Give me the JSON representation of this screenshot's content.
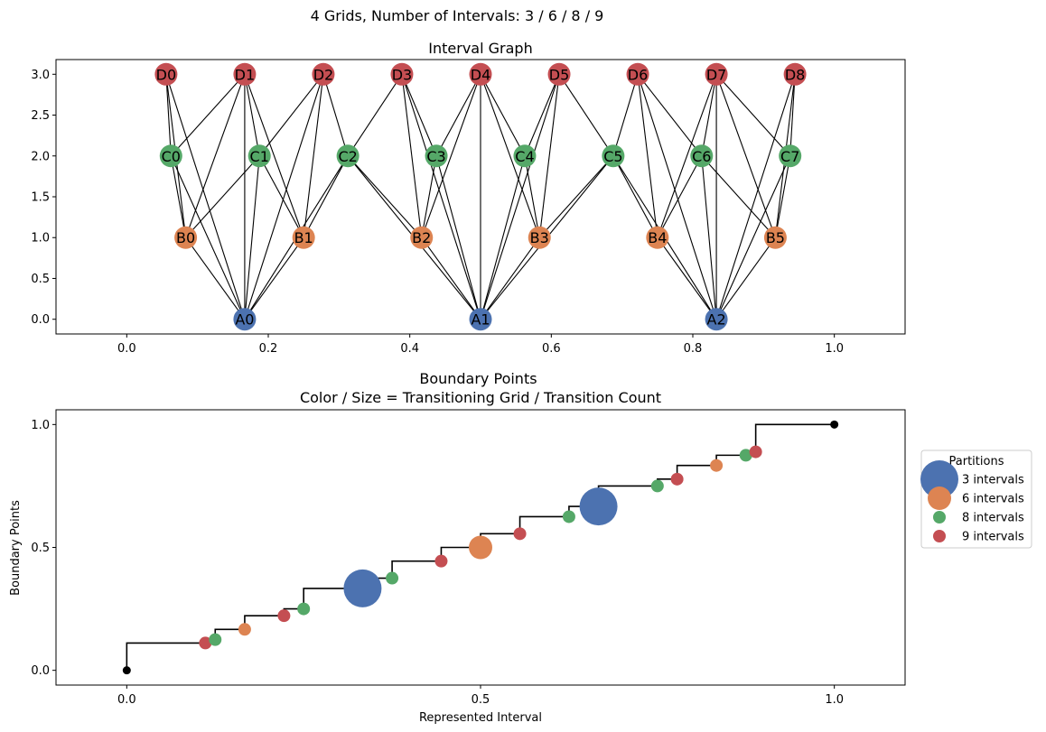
{
  "figure": {
    "suptitle": "4 Grids, Number of Intervals: 3 / 6 / 8 / 9"
  },
  "chart_data": [
    {
      "type": "network",
      "title": "Interval Graph",
      "xlabel": "",
      "ylabel": "",
      "xlim": [
        -0.1,
        1.1
      ],
      "ylim": [
        -0.18,
        3.18
      ],
      "xticks": [
        "0.0",
        "0.2",
        "0.4",
        "0.6",
        "0.8",
        "1.0"
      ],
      "xtick_values": [
        0.0,
        0.2,
        0.4,
        0.6,
        0.8,
        1.0
      ],
      "yticks": [
        "0.0",
        "0.5",
        "1.0",
        "1.5",
        "2.0",
        "2.5",
        "3.0"
      ],
      "ytick_values": [
        0.0,
        0.5,
        1.0,
        1.5,
        2.0,
        2.5,
        3.0
      ],
      "grid": false,
      "edge_color": "#000000",
      "node_groups": [
        {
          "prefix": "A",
          "level": 0,
          "color": "#4c72b0",
          "nodes": [
            {
              "label": "A0",
              "x": 0.1667
            },
            {
              "label": "A1",
              "x": 0.5
            },
            {
              "label": "A2",
              "x": 0.8333
            }
          ]
        },
        {
          "prefix": "B",
          "level": 1,
          "color": "#dd8452",
          "nodes": [
            {
              "label": "B0",
              "x": 0.0833
            },
            {
              "label": "B1",
              "x": 0.25
            },
            {
              "label": "B2",
              "x": 0.4167
            },
            {
              "label": "B3",
              "x": 0.5833
            },
            {
              "label": "B4",
              "x": 0.75
            },
            {
              "label": "B5",
              "x": 0.9167
            }
          ]
        },
        {
          "prefix": "C",
          "level": 2,
          "color": "#55a868",
          "nodes": [
            {
              "label": "C0",
              "x": 0.0625
            },
            {
              "label": "C1",
              "x": 0.1875
            },
            {
              "label": "C2",
              "x": 0.3125
            },
            {
              "label": "C3",
              "x": 0.4375
            },
            {
              "label": "C4",
              "x": 0.5625
            },
            {
              "label": "C5",
              "x": 0.6875
            },
            {
              "label": "C6",
              "x": 0.8125
            },
            {
              "label": "C7",
              "x": 0.9375
            }
          ]
        },
        {
          "prefix": "D",
          "level": 3,
          "color": "#c44e52",
          "nodes": [
            {
              "label": "D0",
              "x": 0.0556
            },
            {
              "label": "D1",
              "x": 0.1667
            },
            {
              "label": "D2",
              "x": 0.2778
            },
            {
              "label": "D3",
              "x": 0.3889
            },
            {
              "label": "D4",
              "x": 0.5
            },
            {
              "label": "D5",
              "x": 0.6111
            },
            {
              "label": "D6",
              "x": 0.7222
            },
            {
              "label": "D7",
              "x": 0.8333
            },
            {
              "label": "D8",
              "x": 0.9444
            }
          ]
        }
      ]
    },
    {
      "type": "scatter",
      "title": "Boundary Points\nColor / Size = Transitioning Grid / Transition Count",
      "title_lines": [
        "Boundary Points",
        "Color / Size = Transitioning Grid / Transition Count"
      ],
      "xlabel": "Represented Interval",
      "ylabel": "Boundary Points",
      "xlim": [
        -0.1,
        1.1
      ],
      "ylim": [
        -0.06,
        1.06
      ],
      "xticks": [
        "0.0",
        "0.5",
        "1.0"
      ],
      "xtick_values": [
        0.0,
        0.5,
        1.0
      ],
      "yticks": [
        "0.0",
        "0.5",
        "1.0"
      ],
      "ytick_values": [
        0.0,
        0.5,
        1.0
      ],
      "grid": false,
      "step_line_color": "#000000",
      "legend": {
        "title": "Partitions",
        "placement": "outside-right",
        "entries": [
          {
            "label": "3 intervals",
            "color": "#4c72b0",
            "size": 3
          },
          {
            "label": "6 intervals",
            "color": "#dd8452",
            "size": 2
          },
          {
            "label": "8 intervals",
            "color": "#55a868",
            "size": 1
          },
          {
            "label": "9 intervals",
            "color": "#c44e52",
            "size": 1
          }
        ]
      },
      "endpoints": [
        {
          "x": 0.0,
          "y": 0.0,
          "color": "#000000"
        },
        {
          "x": 1.0,
          "y": 1.0,
          "color": "#000000"
        }
      ],
      "points": [
        {
          "x": 0.1111,
          "y": 0.1111,
          "grid": "9 intervals",
          "color": "#c44e52",
          "count": 1
        },
        {
          "x": 0.125,
          "y": 0.125,
          "grid": "8 intervals",
          "color": "#55a868",
          "count": 1
        },
        {
          "x": 0.1667,
          "y": 0.1667,
          "grid": "6 intervals",
          "color": "#dd8452",
          "count": 1
        },
        {
          "x": 0.2222,
          "y": 0.2222,
          "grid": "9 intervals",
          "color": "#c44e52",
          "count": 1
        },
        {
          "x": 0.25,
          "y": 0.25,
          "grid": "8 intervals",
          "color": "#55a868",
          "count": 1
        },
        {
          "x": 0.3333,
          "y": 0.3333,
          "grid": "3 intervals",
          "color": "#4c72b0",
          "count": 3
        },
        {
          "x": 0.375,
          "y": 0.375,
          "grid": "8 intervals",
          "color": "#55a868",
          "count": 1
        },
        {
          "x": 0.4444,
          "y": 0.4444,
          "grid": "9 intervals",
          "color": "#c44e52",
          "count": 1
        },
        {
          "x": 0.5,
          "y": 0.5,
          "grid": "6 intervals",
          "color": "#dd8452",
          "count": 2
        },
        {
          "x": 0.5556,
          "y": 0.5556,
          "grid": "9 intervals",
          "color": "#c44e52",
          "count": 1
        },
        {
          "x": 0.625,
          "y": 0.625,
          "grid": "8 intervals",
          "color": "#55a868",
          "count": 1
        },
        {
          "x": 0.6667,
          "y": 0.6667,
          "grid": "3 intervals",
          "color": "#4c72b0",
          "count": 3
        },
        {
          "x": 0.75,
          "y": 0.75,
          "grid": "8 intervals",
          "color": "#55a868",
          "count": 1
        },
        {
          "x": 0.7778,
          "y": 0.7778,
          "grid": "9 intervals",
          "color": "#c44e52",
          "count": 1
        },
        {
          "x": 0.8333,
          "y": 0.8333,
          "grid": "6 intervals",
          "color": "#dd8452",
          "count": 1
        },
        {
          "x": 0.875,
          "y": 0.875,
          "grid": "8 intervals",
          "color": "#55a868",
          "count": 1
        },
        {
          "x": 0.8889,
          "y": 0.8889,
          "grid": "9 intervals",
          "color": "#c44e52",
          "count": 1
        }
      ]
    }
  ]
}
